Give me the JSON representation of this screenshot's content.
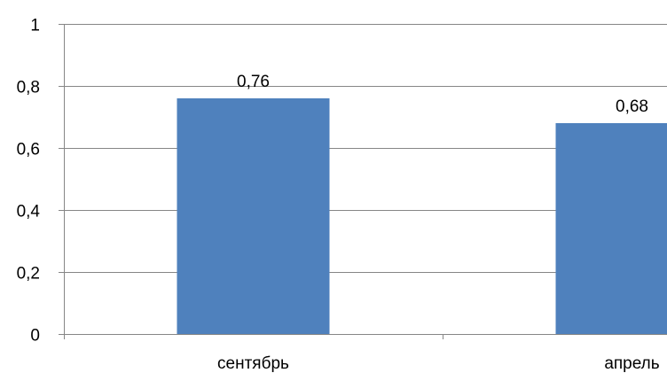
{
  "chart_data": {
    "type": "bar",
    "categories": [
      "сентябрь",
      "апрель"
    ],
    "values": [
      0.76,
      0.68
    ],
    "data_labels": [
      "0,76",
      "0,68"
    ],
    "ylim": [
      0,
      1
    ],
    "y_ticks": [
      0,
      0.2,
      0.4,
      0.6,
      0.8,
      1
    ],
    "y_tick_labels": [
      "0",
      "0,2",
      "0,4",
      "0,6",
      "0,8",
      "1"
    ],
    "title": "",
    "xlabel": "",
    "ylabel": "",
    "grid": true,
    "legend": "none",
    "colors": {
      "bar": "#4f81bd",
      "grid": "#868686",
      "axis": "#868686"
    }
  }
}
